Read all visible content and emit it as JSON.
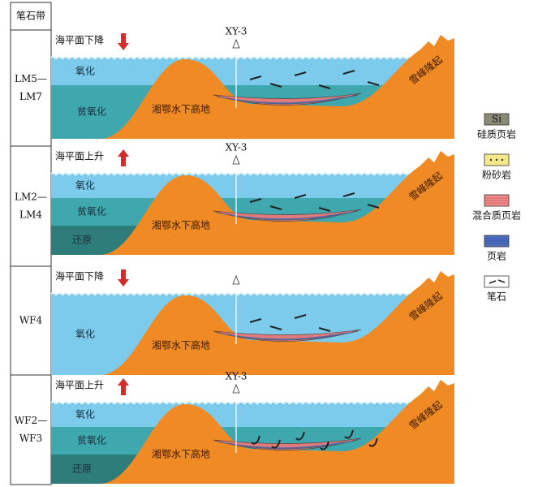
{
  "header": {
    "title": "笔石带"
  },
  "panels": [
    {
      "zone": [
        "LM5—",
        "LM7"
      ],
      "sea_level": "海平面下降",
      "well": "XY-3",
      "layers": [
        "氧化",
        "贫氧化"
      ],
      "highland": "湘鄂水下高地",
      "uplift": "雪峰隆起"
    },
    {
      "zone": [
        "LM2—",
        "LM4"
      ],
      "sea_level": "海平面上升",
      "well": "XY-3",
      "layers": [
        "氧化",
        "贫氧化",
        "还原"
      ],
      "highland": "湘鄂水下高地",
      "uplift": "雪峰隆起"
    },
    {
      "zone": [
        "WF4"
      ],
      "sea_level": "海平面下降",
      "layers": [
        "氧化"
      ],
      "highland": "湘鄂水下高地",
      "uplift": "雪峰隆起"
    },
    {
      "zone": [
        "WF2—",
        "WF3"
      ],
      "sea_level": "海平面上升",
      "well": "XY-3",
      "layers": [
        "氧化",
        "贫氧化",
        "还原"
      ],
      "highland": "湘鄂水下高地",
      "uplift": "雪峰隆起"
    }
  ],
  "legend": [
    {
      "symbol": "Si",
      "label": "硅质页岩"
    },
    {
      "label": "粉砂岩"
    },
    {
      "label": "混合质页岩"
    },
    {
      "label": "页岩"
    },
    {
      "label": "笔石"
    }
  ]
}
